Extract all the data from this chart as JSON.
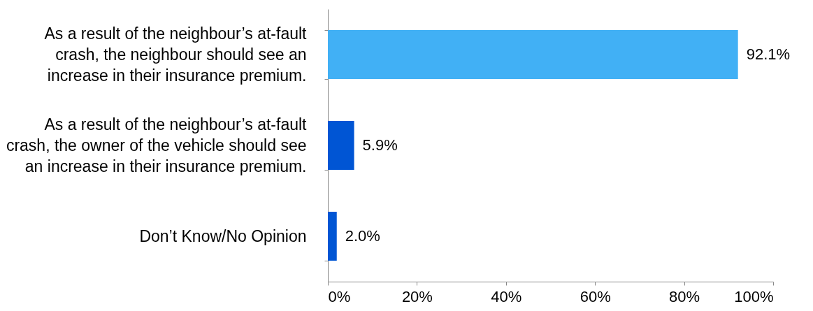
{
  "chart_data": {
    "type": "bar",
    "orientation": "horizontal",
    "categories": [
      "As a result of the neighbour’s at-fault crash, the neighbour should see an increase in their insurance premium.",
      "As a result of the neighbour’s at-fault crash, the owner of the vehicle should see an increase in their insurance premium.",
      "Don’t Know/No Opinion"
    ],
    "values": [
      92.1,
      5.9,
      2.0
    ],
    "colors": [
      "#41b0f5",
      "#0055d4",
      "#0055d4"
    ],
    "value_labels": [
      "92.1%",
      "5.9%",
      "2.0%"
    ],
    "xlim": [
      0,
      100
    ],
    "xticks": [
      {
        "value": 0,
        "label": "0%"
      },
      {
        "value": 20,
        "label": "20%"
      },
      {
        "value": 40,
        "label": "40%"
      },
      {
        "value": 60,
        "label": "60%"
      },
      {
        "value": 80,
        "label": "80%"
      },
      {
        "value": 100,
        "label": "100%"
      }
    ],
    "grid": false
  }
}
